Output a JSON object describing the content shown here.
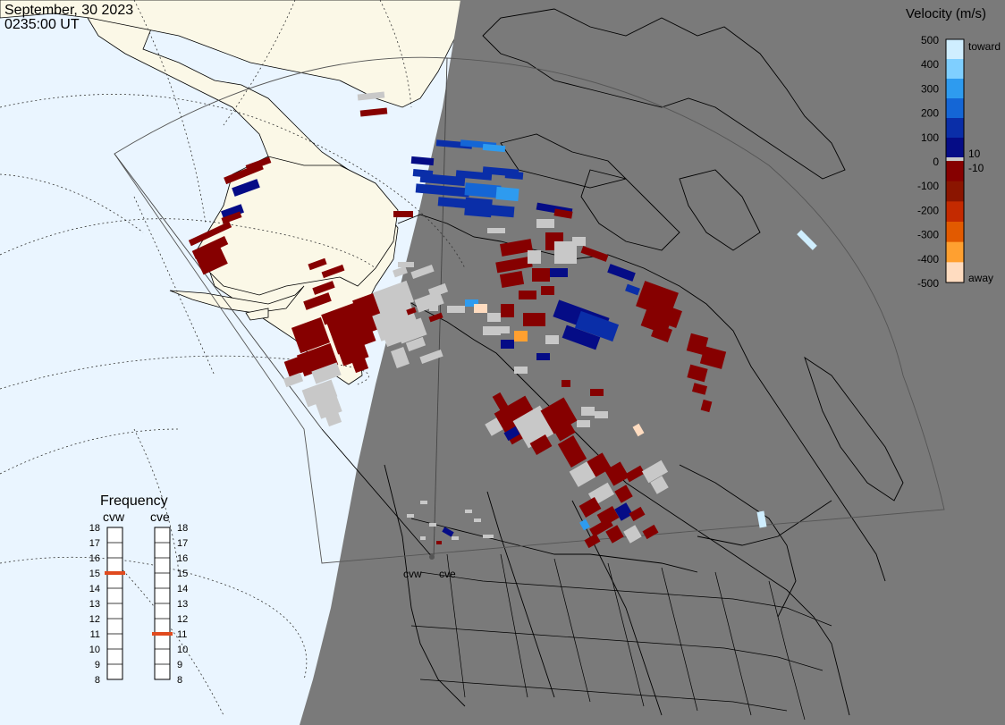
{
  "header": {
    "date": "September, 30 2023",
    "time": "0235:00 UT"
  },
  "colorbar": {
    "title": "Velocity (m/s)",
    "ticks": [
      "500",
      "400",
      "300",
      "200",
      "100",
      "0",
      "-100",
      "-200",
      "-300",
      "-400",
      "-500"
    ],
    "inner_labels": [
      "10",
      "-10"
    ],
    "toward_label": "toward",
    "away_label": "away",
    "colors": [
      "#cfeeff",
      "#7fcfff",
      "#2e9bef",
      "#1466d6",
      "#0a2ea8",
      "#050c86",
      "#c8c8c8",
      "#860000",
      "#8b1500",
      "#c42a00",
      "#e25a00",
      "#ffa030",
      "#ffdcc0"
    ]
  },
  "frequency": {
    "title": "Frequency",
    "radars": [
      {
        "name": "cvw",
        "value": 15
      },
      {
        "name": "cve",
        "value": 11
      }
    ],
    "scale": [
      "18",
      "17",
      "16",
      "15",
      "14",
      "13",
      "12",
      "11",
      "10",
      "9",
      "8"
    ],
    "marker_color": "#e04a1e"
  },
  "sites": [
    {
      "name": "cvw"
    },
    {
      "name": "cve"
    }
  ],
  "map_colors": {
    "ocean": "#eaf5ff",
    "land": "#fbf8e7",
    "night": "#7a7a7a",
    "borders": "#000000"
  }
}
